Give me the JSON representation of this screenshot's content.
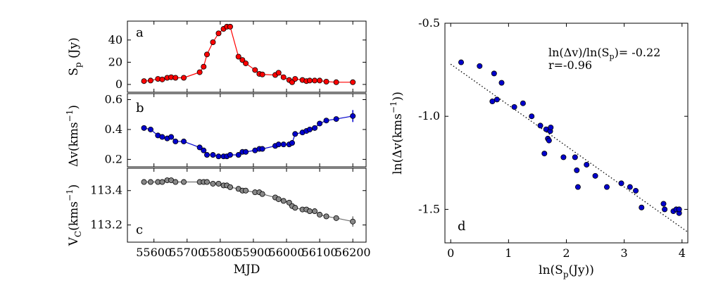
{
  "chart_data": [
    {
      "type": "line",
      "panel": "a",
      "ylabel_main": "S",
      "ylabel_sub": "p",
      "ylabel_tail": " (Jy)",
      "xlabel": "MJD",
      "xlim": [
        55520,
        56240
      ],
      "ylim": [
        -7,
        57
      ],
      "xticks": [
        55600,
        55700,
        55800,
        55900,
        56000,
        56100,
        56200
      ],
      "yticks": [
        0,
        20,
        40
      ],
      "color": "#ff0000",
      "marker_color": "#ff0000",
      "x": [
        55570,
        55590,
        55612,
        55625,
        55640,
        55652,
        55665,
        55690,
        55738,
        55750,
        55760,
        55778,
        55795,
        55810,
        55820,
        55830,
        55855,
        55867,
        55877,
        55905,
        55918,
        55927,
        55966,
        55976,
        55991,
        56008,
        56017,
        56026,
        56048,
        56060,
        56070,
        56085,
        56100,
        56120,
        56150,
        56200
      ],
      "y": [
        3,
        3.5,
        5,
        4.5,
        6,
        6.5,
        6,
        6,
        11,
        16,
        27,
        38,
        46,
        50,
        52,
        52,
        25,
        22,
        19,
        13,
        9.5,
        9,
        8.5,
        10.5,
        6.5,
        4,
        2,
        5,
        4,
        3,
        3.5,
        3.5,
        3.5,
        2.5,
        2,
        2
      ]
    },
    {
      "type": "line",
      "panel": "b",
      "ylabel_main": "Δv(kms",
      "ylabel_sup": "−1",
      "ylabel_tail": ")",
      "xlim": [
        55520,
        56240
      ],
      "ylim": [
        0.15,
        0.64
      ],
      "yticks": [
        0.2,
        0.4,
        0.6
      ],
      "ytick_labels": [
        "0.2",
        "0.4",
        "0.6"
      ],
      "color": "#0000cc",
      "marker_color": "#0000cc",
      "x": [
        55570,
        55590,
        55612,
        55625,
        55640,
        55652,
        55665,
        55690,
        55738,
        55750,
        55760,
        55778,
        55795,
        55810,
        55820,
        55830,
        55855,
        55867,
        55877,
        55905,
        55918,
        55927,
        55966,
        55976,
        55991,
        56008,
        56017,
        56026,
        56048,
        56060,
        56070,
        56085,
        56100,
        56120,
        56150,
        56200
      ],
      "y": [
        0.41,
        0.4,
        0.36,
        0.35,
        0.34,
        0.35,
        0.32,
        0.32,
        0.28,
        0.26,
        0.23,
        0.23,
        0.22,
        0.22,
        0.22,
        0.23,
        0.23,
        0.25,
        0.25,
        0.26,
        0.27,
        0.27,
        0.29,
        0.3,
        0.3,
        0.3,
        0.31,
        0.37,
        0.38,
        0.39,
        0.4,
        0.41,
        0.44,
        0.46,
        0.47,
        0.49
      ],
      "error_last": 0.04
    },
    {
      "type": "line",
      "panel": "c",
      "ylabel_main": "V",
      "ylabel_sub": "C",
      "ylabel_mid": "(kms",
      "ylabel_sup": "−1",
      "ylabel_tail": ")",
      "xlim": [
        55520,
        56240
      ],
      "ylim": [
        113.1,
        113.53
      ],
      "yticks": [
        113.2,
        113.4
      ],
      "ytick_labels": [
        "113.2",
        "113.4"
      ],
      "color": "#707070",
      "marker_color": "#888888",
      "x": [
        55570,
        55590,
        55612,
        55625,
        55640,
        55652,
        55665,
        55690,
        55738,
        55750,
        55760,
        55778,
        55795,
        55810,
        55820,
        55830,
        55855,
        55867,
        55877,
        55905,
        55918,
        55927,
        55966,
        55976,
        55991,
        56008,
        56017,
        56026,
        56048,
        56060,
        56070,
        56085,
        56100,
        56120,
        56150,
        56200
      ],
      "y": [
        113.45,
        113.45,
        113.45,
        113.45,
        113.46,
        113.46,
        113.45,
        113.45,
        113.45,
        113.45,
        113.45,
        113.44,
        113.44,
        113.43,
        113.43,
        113.42,
        113.41,
        113.4,
        113.4,
        113.39,
        113.39,
        113.38,
        113.36,
        113.35,
        113.34,
        113.33,
        113.31,
        113.3,
        113.29,
        113.29,
        113.28,
        113.28,
        113.26,
        113.25,
        113.24,
        113.22
      ],
      "error_last": 0.03
    },
    {
      "type": "scatter",
      "panel": "d",
      "xlabel_main": "ln(S",
      "xlabel_sub": "p",
      "xlabel_tail": "(Jy))",
      "ylabel_main": "ln(Δv(kms",
      "ylabel_sup": "−1",
      "ylabel_tail": "))",
      "xlim": [
        -0.1,
        4.1
      ],
      "ylim": [
        -1.68,
        -0.5
      ],
      "xticks": [
        0,
        1,
        2,
        3,
        4
      ],
      "yticks": [
        -0.5,
        -1.0,
        -1.5
      ],
      "ytick_labels": [
        "-0.5",
        "-1.0",
        "-1.5"
      ],
      "color": "#0000cc",
      "fit": {
        "slope": -0.22,
        "intercept": -0.72
      },
      "annotation_1": "ln(Δv)/ln(S",
      "annotation_1_sub": "p",
      "annotation_1_tail": ")= -0.22",
      "annotation_2": "r=-0.96",
      "x": [
        0.18,
        0.5,
        0.72,
        0.75,
        0.8,
        0.88,
        1.1,
        1.25,
        1.4,
        1.55,
        1.65,
        1.68,
        1.7,
        1.72,
        1.73,
        1.62,
        1.95,
        2.15,
        2.18,
        2.2,
        2.35,
        2.5,
        2.7,
        2.95,
        3.1,
        3.2,
        3.3,
        3.68,
        3.7,
        3.85,
        3.9,
        3.95,
        3.95
      ],
      "y": [
        -0.71,
        -0.73,
        -0.92,
        -0.77,
        -0.91,
        -0.82,
        -0.95,
        -0.93,
        -1.0,
        -1.05,
        -1.07,
        -1.12,
        -1.13,
        -1.08,
        -1.06,
        -1.2,
        -1.22,
        -1.22,
        -1.29,
        -1.38,
        -1.26,
        -1.32,
        -1.38,
        -1.36,
        -1.38,
        -1.4,
        -1.49,
        -1.47,
        -1.5,
        -1.51,
        -1.5,
        -1.52,
        -1.5
      ]
    }
  ]
}
